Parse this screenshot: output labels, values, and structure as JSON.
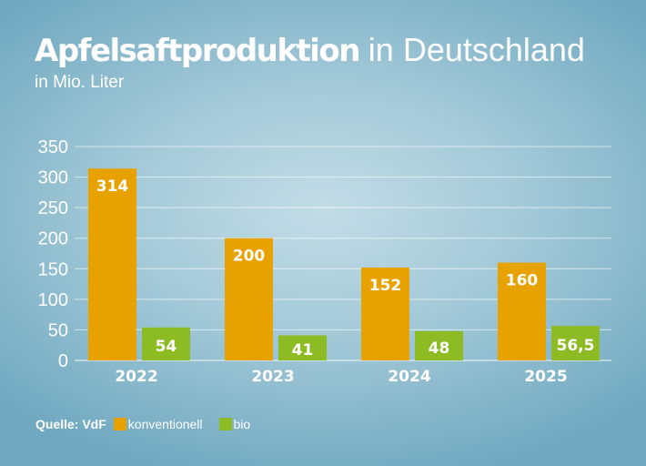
{
  "title_bold": "Apfelsaftproduktion",
  "title_regular": "in Deutschland",
  "subtitle": "in Mio. Liter",
  "source": "Quelle: VdF",
  "colors": {
    "konventionell": "#e8a200",
    "bio": "#8dbb24"
  },
  "chart_data": {
    "type": "bar",
    "title": "Apfelsaftproduktion in Deutschland",
    "subtitle": "in Mio. Liter",
    "categories": [
      "2022",
      "2023",
      "2024",
      "2025"
    ],
    "series": [
      {
        "name": "konventionell",
        "values": [
          314,
          200,
          152,
          160
        ],
        "labels": [
          "314",
          "200",
          "152",
          "160"
        ]
      },
      {
        "name": "bio",
        "values": [
          54,
          41,
          48,
          56.5
        ],
        "labels": [
          "54",
          "41",
          "48",
          "56,5"
        ]
      }
    ],
    "ylim": [
      0,
      350
    ],
    "yticks": [
      0,
      50,
      100,
      150,
      200,
      250,
      300,
      350
    ],
    "grid": true,
    "legend": "bottom-left"
  }
}
